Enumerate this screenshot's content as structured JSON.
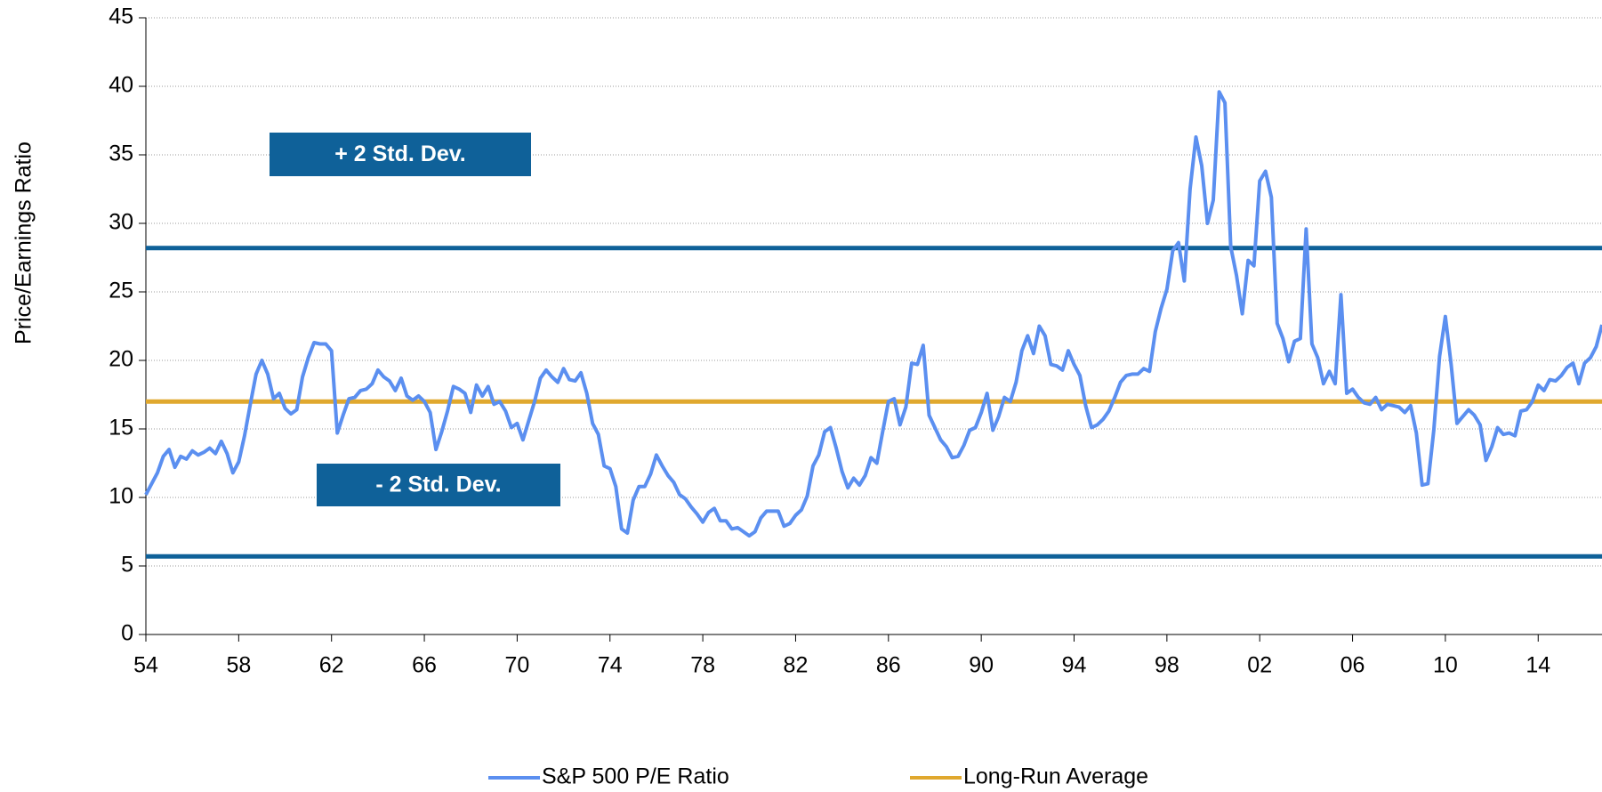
{
  "chart_data": {
    "type": "line",
    "y_label": "Price/Earnings Ratio",
    "x": [
      1954,
      1954.25,
      1954.5,
      1954.75,
      1955,
      1955.25,
      1955.5,
      1955.75,
      1956,
      1956.25,
      1956.5,
      1956.75,
      1957,
      1957.25,
      1957.5,
      1957.75,
      1958,
      1958.25,
      1958.5,
      1958.75,
      1959,
      1959.25,
      1959.5,
      1959.75,
      1960,
      1960.25,
      1960.5,
      1960.75,
      1961,
      1961.25,
      1961.5,
      1961.75,
      1962,
      1962.25,
      1962.5,
      1962.75,
      1963,
      1963.25,
      1963.5,
      1963.75,
      1964,
      1964.25,
      1964.5,
      1964.75,
      1965,
      1965.25,
      1965.5,
      1965.75,
      1966,
      1966.25,
      1966.5,
      1966.75,
      1967,
      1967.25,
      1967.5,
      1967.75,
      1968,
      1968.25,
      1968.5,
      1968.75,
      1969,
      1969.25,
      1969.5,
      1969.75,
      1970,
      1970.25,
      1970.5,
      1970.75,
      1971,
      1971.25,
      1971.5,
      1971.75,
      1972,
      1972.25,
      1972.5,
      1972.75,
      1973,
      1973.25,
      1973.5,
      1973.75,
      1974,
      1974.25,
      1974.5,
      1974.75,
      1975,
      1975.25,
      1975.5,
      1975.75,
      1976,
      1976.25,
      1976.5,
      1976.75,
      1977,
      1977.25,
      1977.5,
      1977.75,
      1978,
      1978.25,
      1978.5,
      1978.75,
      1979,
      1979.25,
      1979.5,
      1979.75,
      1980,
      1980.25,
      1980.5,
      1980.75,
      1981,
      1981.25,
      1981.5,
      1981.75,
      1982,
      1982.25,
      1982.5,
      1982.75,
      1983,
      1983.25,
      1983.5,
      1983.75,
      1984,
      1984.25,
      1984.5,
      1984.75,
      1985,
      1985.25,
      1985.5,
      1985.75,
      1986,
      1986.25,
      1986.5,
      1986.75,
      1987,
      1987.25,
      1987.5,
      1987.75,
      1988,
      1988.25,
      1988.5,
      1988.75,
      1989,
      1989.25,
      1989.5,
      1989.75,
      1990,
      1990.25,
      1990.5,
      1990.75,
      1991,
      1991.25,
      1991.5,
      1991.75,
      1992,
      1992.25,
      1992.5,
      1992.75,
      1993,
      1993.25,
      1993.5,
      1993.75,
      1994,
      1994.25,
      1994.5,
      1994.75,
      1995,
      1995.25,
      1995.5,
      1995.75,
      1996,
      1996.25,
      1996.5,
      1996.75,
      1997,
      1997.25,
      1997.5,
      1997.75,
      1998,
      1998.25,
      1998.5,
      1998.75,
      1999,
      1999.25,
      1999.5,
      1999.75,
      2000,
      2000.25,
      2000.5,
      2000.75,
      2001,
      2001.25,
      2001.5,
      2001.75,
      2002,
      2002.25,
      2002.5,
      2002.75,
      2003,
      2003.25,
      2003.5,
      2003.75,
      2004,
      2004.25,
      2004.5,
      2004.75,
      2005,
      2005.25,
      2005.5,
      2005.75,
      2006,
      2006.25,
      2006.5,
      2006.75,
      2007,
      2007.25,
      2007.5,
      2007.75,
      2008,
      2008.25,
      2008.5,
      2008.75,
      2009,
      2009.25,
      2009.5,
      2009.75,
      2010,
      2010.25,
      2010.5,
      2010.75,
      2011,
      2011.25,
      2011.5,
      2011.75,
      2012,
      2012.25,
      2012.5,
      2012.75,
      2013,
      2013.25,
      2013.5,
      2013.75,
      2014,
      2014.25,
      2014.5,
      2014.75,
      2015,
      2015.25,
      2015.5,
      2015.75,
      2016,
      2016.25,
      2016.5,
      2016.75
    ],
    "series": [
      {
        "name": "S&P 500 P/E Ratio",
        "color": "#5b8ff0",
        "values": [
          10.2,
          11.0,
          11.8,
          13.0,
          13.5,
          12.2,
          13.0,
          12.8,
          13.4,
          13.1,
          13.3,
          13.6,
          13.2,
          14.1,
          13.2,
          11.8,
          12.6,
          14.5,
          16.8,
          19.0,
          20.0,
          19.0,
          17.2,
          17.6,
          16.5,
          16.1,
          16.4,
          18.8,
          20.2,
          21.3,
          21.2,
          21.2,
          20.7,
          14.7,
          16.0,
          17.2,
          17.3,
          17.8,
          17.9,
          18.3,
          19.3,
          18.8,
          18.5,
          17.8,
          18.7,
          17.4,
          17.1,
          17.4,
          17.0,
          16.2,
          13.5,
          14.8,
          16.3,
          18.1,
          17.9,
          17.6,
          16.2,
          18.2,
          17.4,
          18.1,
          16.8,
          17.0,
          16.3,
          15.1,
          15.4,
          14.2,
          15.6,
          17.0,
          18.7,
          19.3,
          18.8,
          18.4,
          19.4,
          18.6,
          18.5,
          19.1,
          17.6,
          15.4,
          14.6,
          12.3,
          12.1,
          10.8,
          7.7,
          7.4,
          9.8,
          10.8,
          10.8,
          11.7,
          13.1,
          12.3,
          11.6,
          11.1,
          10.2,
          9.9,
          9.3,
          8.8,
          8.2,
          8.9,
          9.2,
          8.3,
          8.3,
          7.7,
          7.8,
          7.5,
          7.2,
          7.5,
          8.5,
          9.0,
          9.0,
          9.0,
          7.9,
          8.1,
          8.7,
          9.1,
          10.1,
          12.3,
          13.1,
          14.8,
          15.1,
          13.6,
          11.9,
          10.7,
          11.4,
          10.9,
          11.6,
          12.9,
          12.5,
          14.8,
          17.0,
          17.2,
          15.3,
          16.6,
          19.8,
          19.7,
          21.1,
          16.0,
          15.1,
          14.2,
          13.7,
          12.9,
          13.0,
          13.8,
          14.9,
          15.1,
          16.2,
          17.6,
          14.9,
          15.9,
          17.3,
          17.0,
          18.4,
          20.7,
          21.8,
          20.5,
          22.5,
          21.8,
          19.7,
          19.6,
          19.3,
          20.7,
          19.7,
          18.9,
          16.7,
          15.1,
          15.3,
          15.7,
          16.3,
          17.3,
          18.4,
          18.9,
          19.0,
          19.0,
          19.4,
          19.2,
          22.1,
          23.8,
          25.2,
          28.0,
          28.6,
          25.8,
          32.5,
          36.3,
          34.2,
          30.0,
          31.7,
          39.6,
          38.8,
          28.3,
          26.2,
          23.4,
          27.3,
          26.9,
          33.1,
          33.8,
          31.9,
          22.7,
          21.6,
          19.9,
          21.4,
          21.6,
          29.6,
          21.2,
          20.2,
          18.3,
          19.2,
          18.3,
          24.8,
          17.6,
          17.9,
          17.3,
          16.9,
          16.8,
          17.3,
          16.4,
          16.8,
          16.7,
          16.6,
          16.2,
          16.7,
          14.7,
          10.9,
          11.0,
          14.9,
          20.3,
          23.2,
          19.7,
          15.4,
          15.9,
          16.4,
          16.0,
          15.3,
          12.7,
          13.7,
          15.1,
          14.6,
          14.7,
          14.5,
          16.3,
          16.4,
          17.0,
          18.2,
          17.8,
          18.6,
          18.5,
          18.9,
          19.5,
          19.8,
          18.3,
          19.8,
          20.2,
          21.0,
          22.6
        ]
      }
    ],
    "average": {
      "name": "Long-Run Average",
      "value": 17.0,
      "color": "#e0a82e"
    },
    "bands": [
      {
        "label": "+ 2 Std. Dev.",
        "value": 28.2
      },
      {
        "label": "- 2 Std. Dev.",
        "value": 5.7
      }
    ],
    "band_color": "#0f6199",
    "xlim": [
      1954,
      2016.75
    ],
    "xticks": [
      {
        "value": 1954,
        "label": "54"
      },
      {
        "value": 1958,
        "label": "58"
      },
      {
        "value": 1962,
        "label": "62"
      },
      {
        "value": 1966,
        "label": "66"
      },
      {
        "value": 1970,
        "label": "70"
      },
      {
        "value": 1974,
        "label": "74"
      },
      {
        "value": 1978,
        "label": "78"
      },
      {
        "value": 1982,
        "label": "82"
      },
      {
        "value": 1986,
        "label": "86"
      },
      {
        "value": 1990,
        "label": "90"
      },
      {
        "value": 1994,
        "label": "94"
      },
      {
        "value": 1998,
        "label": "98"
      },
      {
        "value": 2002,
        "label": "02"
      },
      {
        "value": 2006,
        "label": "06"
      },
      {
        "value": 2010,
        "label": "10"
      },
      {
        "value": 2014,
        "label": "14"
      }
    ],
    "ylim": [
      0,
      45
    ],
    "yticks": [
      0,
      5,
      10,
      15,
      20,
      25,
      30,
      35,
      40,
      45
    ],
    "grid": true
  }
}
